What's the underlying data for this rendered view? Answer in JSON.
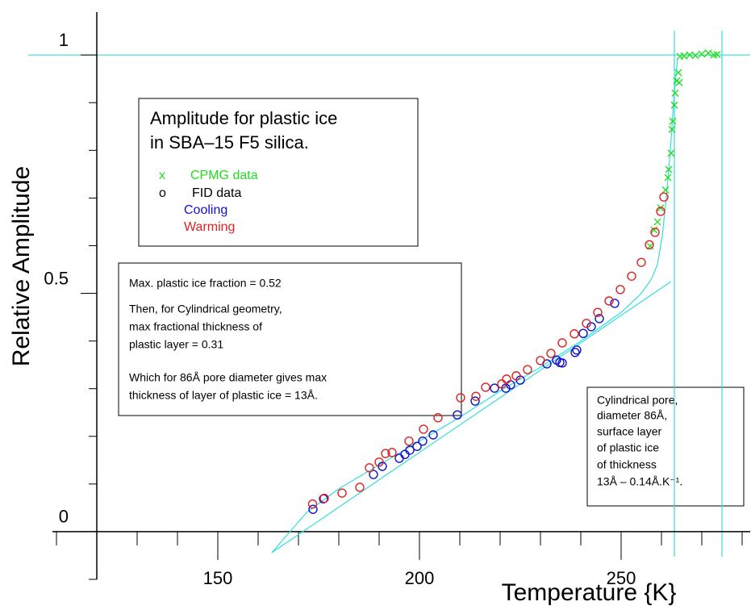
{
  "chart_data": {
    "type": "scatter",
    "x_label": "Temperature  {K}",
    "y_label": "Relative  Amplitude",
    "xlim": [
      110,
      282
    ],
    "ylim": [
      -0.1,
      1.09
    ],
    "xticks": [
      150,
      200,
      250
    ],
    "yticks": [
      0,
      0.5,
      1
    ],
    "xminorticks": [
      110,
      120,
      130,
      140,
      160,
      170,
      180,
      190,
      210,
      220,
      230,
      240,
      260,
      270,
      280
    ],
    "yminorticks": [
      -0.1,
      0.1,
      0.2,
      0.3,
      0.4,
      0.6,
      0.7,
      0.8,
      0.9
    ],
    "ref_color": "#33dddd",
    "vlines": [
      263.2,
      275
    ],
    "hlines": [
      1
    ],
    "series": [
      {
        "name": "CPMG data",
        "color": "#22dd22",
        "marker": "x",
        "x": [
          257.2,
          258.2,
          259,
          259.8,
          261,
          261.6,
          261.8,
          262.4,
          262.6,
          262.8,
          263.2,
          263.4,
          263.8,
          264.2,
          264.4,
          264.6,
          265.6,
          267,
          268.4,
          270,
          271.6,
          273,
          273.8
        ],
        "values": [
          0.599,
          0.633,
          0.65,
          0.679,
          0.717,
          0.743,
          0.76,
          0.794,
          0.844,
          0.861,
          0.895,
          0.92,
          0.946,
          0.963,
          0.942,
          0.997,
          0.998,
          1.0,
          0.999,
          1.002,
          1.004,
          1.0,
          1.001
        ]
      },
      {
        "name": "Cooling",
        "color": "#1111cc",
        "marker": "o",
        "x": [
          173.6,
          176.2,
          188.6,
          190.8,
          195,
          196.4,
          197.6,
          199.4,
          200.8,
          203.4,
          209.4,
          213.8,
          218.6,
          221.4,
          222.6,
          225,
          231.6,
          234,
          234.8,
          235.4,
          238.6,
          239,
          240.6,
          242.6,
          244.6,
          248.4
        ],
        "values": [
          0.047,
          0.069,
          0.12,
          0.137,
          0.154,
          0.162,
          0.171,
          0.179,
          0.19,
          0.203,
          0.245,
          0.274,
          0.301,
          0.301,
          0.308,
          0.318,
          0.352,
          0.36,
          0.355,
          0.354,
          0.376,
          0.381,
          0.416,
          0.43,
          0.447,
          0.479
        ]
      },
      {
        "name": "Warming",
        "color": "#dd2222",
        "marker": "o",
        "x": [
          173.5,
          176.4,
          180.8,
          185.2,
          187.6,
          190,
          191.6,
          193.2,
          197.4,
          201,
          204.6,
          210.2,
          214,
          216.4,
          220.4,
          221.6,
          224,
          226.8,
          230,
          232.6,
          235.4,
          238.4,
          241.4,
          244.2,
          247,
          249.8,
          252.6,
          255,
          257,
          258.4,
          259.8,
          260.6
        ],
        "values": [
          0.058,
          0.07,
          0.081,
          0.093,
          0.134,
          0.146,
          0.164,
          0.166,
          0.19,
          0.215,
          0.239,
          0.281,
          0.284,
          0.303,
          0.31,
          0.32,
          0.327,
          0.34,
          0.359,
          0.374,
          0.396,
          0.415,
          0.437,
          0.46,
          0.484,
          0.508,
          0.536,
          0.565,
          0.602,
          0.628,
          0.672,
          0.702
        ]
      }
    ],
    "fit_lines": [
      {
        "color": "#33dddd",
        "x": [
          163.4,
          262.4
        ],
        "values": [
          -0.044,
          0.525
        ]
      },
      {
        "color": "#33dddd",
        "x": [
          163.4,
          172,
          180,
          190,
          200,
          210,
          220,
          230,
          240,
          250,
          255,
          257.5,
          259,
          260.2,
          261.2,
          262.2,
          263,
          263.6,
          264
        ],
        "values": [
          -0.044,
          0.04,
          0.09,
          0.14,
          0.19,
          0.24,
          0.295,
          0.345,
          0.4,
          0.46,
          0.5,
          0.53,
          0.56,
          0.62,
          0.7,
          0.8,
          0.9,
          0.96,
          0.99
        ]
      }
    ],
    "legend": {
      "title": [
        "Amplitude for plastic ice",
        "in SBA–15 F5 silica."
      ],
      "symbols": [
        "x",
        "o"
      ],
      "group_label": "FID data"
    },
    "notes": [
      [
        "Max. plastic ice fraction =   0.52",
        "Then, for Cylindrical geometry,",
        "max fractional thickness of",
        "plastic layer =   0.31",
        "Which for 86Å pore diameter gives max",
        "thickness of layer of plastic ice = 13Å."
      ],
      [
        "Cylindrical pore,",
        "diameter 86Å,",
        "surface layer",
        "of plastic ice",
        "of thickness",
        "13Å  –  0.14Å.K⁻¹."
      ]
    ]
  }
}
